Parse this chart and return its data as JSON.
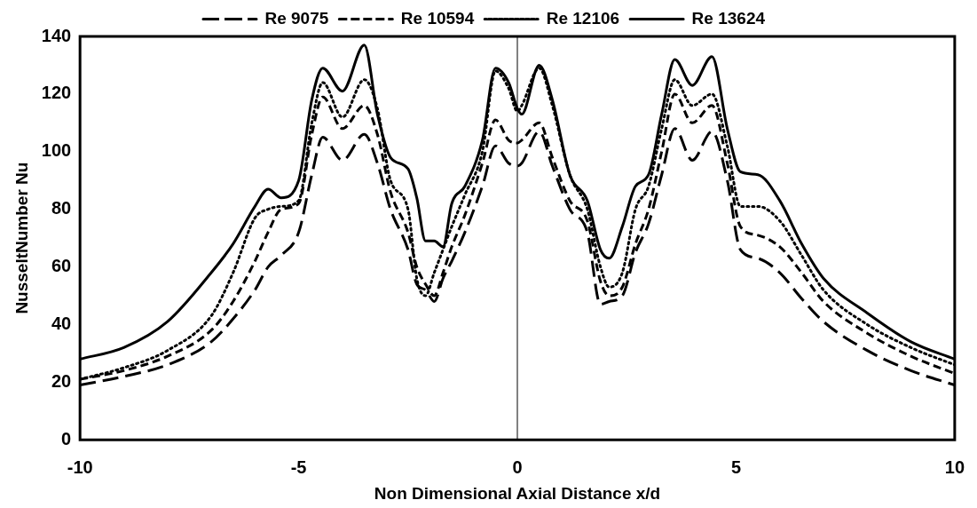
{
  "chart_data": {
    "type": "line",
    "xlabel": "Non Dimensional Axial Distance x/d",
    "ylabel": "NusseltNumber Nu",
    "x": [
      -10,
      -9,
      -8,
      -7,
      -6.5,
      -6,
      -5.7,
      -5.4,
      -5,
      -4.7,
      -4.45,
      -4,
      -3.5,
      -3.2,
      -2.9,
      -2.5,
      -2.3,
      -2.1,
      -1.9,
      -1.7,
      -1.5,
      -1.2,
      -0.8,
      -0.5,
      -0.2,
      0,
      0.1,
      0.5,
      0.8,
      1.2,
      1.6,
      1.9,
      2.1,
      2.4,
      2.7,
      3,
      3.3,
      3.6,
      4,
      4.45,
      4.8,
      5.1,
      5.5,
      6,
      6.5,
      7,
      8,
      9,
      10
    ],
    "series": [
      {
        "name": "Re 9075",
        "color": "#000000",
        "line_style": "dashed",
        "values": [
          19,
          22,
          26,
          34,
          42,
          52,
          60,
          64,
          72,
          92,
          105,
          97,
          106,
          96,
          80,
          66,
          54,
          52,
          48,
          56,
          62,
          72,
          88,
          102,
          96,
          95,
          96,
          107,
          95,
          80,
          72,
          47,
          48,
          50,
          65,
          75,
          92,
          108,
          97,
          107,
          90,
          66,
          63,
          58,
          49,
          41,
          31,
          24,
          19
        ]
      },
      {
        "name": "Re 10594",
        "color": "#000000",
        "line_style": "dashed",
        "values": [
          21,
          24,
          29,
          38,
          48,
          62,
          72,
          80,
          82,
          106,
          119,
          108,
          116,
          106,
          86,
          72,
          60,
          54,
          50,
          58,
          67,
          78,
          96,
          111,
          104,
          103,
          104,
          110,
          98,
          83,
          76,
          55,
          50,
          53,
          68,
          80,
          100,
          120,
          110,
          116,
          96,
          74,
          71,
          67,
          58,
          48,
          37,
          29,
          23
        ]
      },
      {
        "name": "Re 12106",
        "color": "#000000",
        "line_style": "dotted",
        "values": [
          21,
          25,
          31,
          43,
          58,
          77,
          80,
          81,
          83,
          110,
          124,
          112,
          125,
          115,
          90,
          80,
          56,
          50,
          58,
          66,
          74,
          85,
          100,
          128,
          122,
          114,
          116,
          129,
          116,
          92,
          80,
          60,
          53,
          58,
          80,
          88,
          108,
          125,
          116,
          120,
          102,
          81,
          81,
          76,
          64,
          52,
          40,
          32,
          26
        ]
      },
      {
        "name": "Re 13624",
        "color": "#000000",
        "line_style": "solid",
        "values": [
          28,
          32,
          41,
          58,
          68,
          81,
          87,
          84,
          90,
          118,
          129,
          121,
          137,
          113,
          98,
          94,
          84,
          69,
          69,
          67,
          82,
          88,
          104,
          129,
          124,
          115,
          113,
          130,
          118,
          92,
          83,
          66,
          63,
          74,
          88,
          92,
          113,
          132,
          123,
          133,
          108,
          93,
          92,
          83,
          68,
          56,
          44,
          34,
          28
        ]
      }
    ],
    "xlim": [
      -10,
      10
    ],
    "xticks": [
      -10,
      -5,
      0,
      5,
      10
    ],
    "ylim": [
      0,
      140
    ],
    "yticks": [
      0,
      20,
      40,
      60,
      80,
      100,
      120,
      140
    ],
    "ref_lines": [
      {
        "axis": "x",
        "value": 0,
        "color": "#808080"
      }
    ],
    "grid": false,
    "legend": "top",
    "marker": "none"
  }
}
